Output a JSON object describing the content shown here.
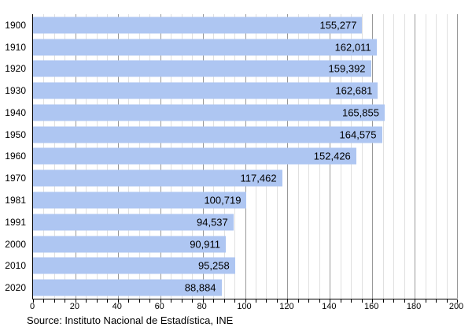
{
  "chart_data": {
    "type": "bar",
    "orientation": "horizontal",
    "title": "",
    "xlabel": "",
    "ylabel": "",
    "categories": [
      "1900",
      "1910",
      "1920",
      "1930",
      "1940",
      "1950",
      "1960",
      "1970",
      "1981",
      "1991",
      "2000",
      "2010",
      "2020"
    ],
    "values": [
      155277,
      162011,
      159392,
      162681,
      165855,
      164575,
      152426,
      117462,
      100719,
      94537,
      90911,
      95258,
      88884
    ],
    "value_labels": [
      "155,277",
      "162,011",
      "159,392",
      "162,681",
      "165,855",
      "164,575",
      "152,426",
      "117,462",
      "100,719",
      "94,537",
      "90,911",
      "95,258",
      "88,884"
    ],
    "xlim": [
      0,
      200
    ],
    "x_axis_unit_scale": 1000,
    "x_major_step": 20,
    "x_minor_step": 5,
    "x_major_tick_labels": [
      "0",
      "20",
      "40",
      "60",
      "80",
      "100",
      "120",
      "140",
      "160",
      "180",
      "200"
    ],
    "grid": "on",
    "legend": "none",
    "source": "Source: Instituto Nacional de Estadística, INE",
    "colors": {
      "bar_fill": "#aec6f2",
      "text": "#000000",
      "major_gridline": "#999999",
      "minor_gridline": "#e0e0e0",
      "axis_line": "#000000",
      "background": "#ffffff"
    }
  }
}
